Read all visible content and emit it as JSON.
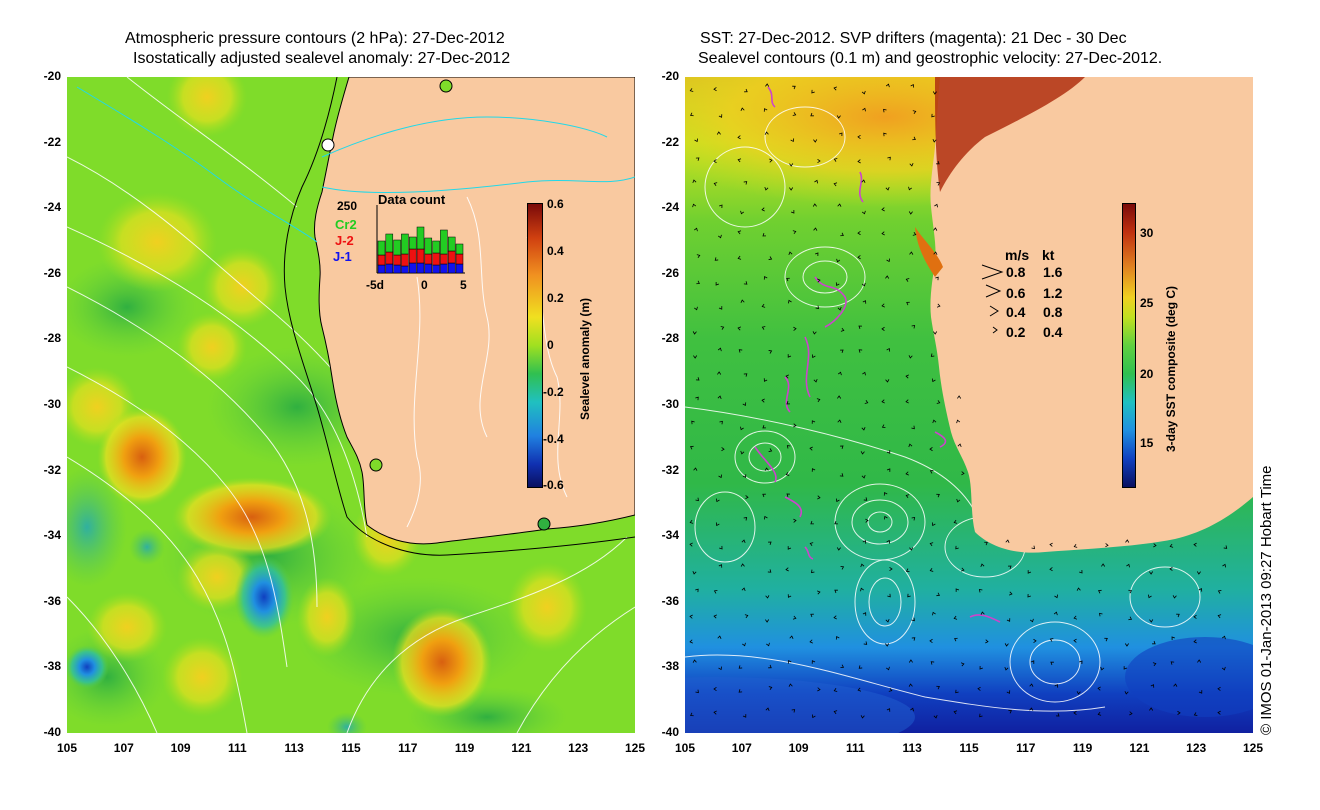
{
  "left_panel": {
    "title_line1": "Atmospheric pressure contours (2 hPa): 27-Dec-2012",
    "title_line2": "Isostatically adjusted sealevel anomaly: 27-Dec-2012",
    "colorbar": {
      "label": "Sealevel anomaly (m)",
      "ticks": [
        "0.6",
        "0.4",
        "0.2",
        "0",
        "-0.2",
        "-0.4",
        "-0.6"
      ],
      "min": -0.6,
      "max": 0.6
    },
    "data_count": {
      "title": "Data count",
      "max_label": "250",
      "series_labels": [
        "Cr2",
        "J-2",
        "J-1"
      ],
      "series_colors": [
        "#22cc22",
        "#ee1111",
        "#1111ee"
      ],
      "x_ticks": [
        "-5d",
        "0",
        "5"
      ]
    }
  },
  "right_panel": {
    "title_line1": "SST: 27-Dec-2012. SVP drifters (magenta): 21 Dec - 30 Dec",
    "title_line2": "Sealevel contours (0.1 m) and geostrophic velocity: 27-Dec-2012.",
    "colorbar": {
      "label": "3-day SST composite (deg C)",
      "ticks": [
        "30",
        "25",
        "20",
        "15"
      ],
      "min": 12,
      "max": 32
    },
    "velocity_legend": {
      "header_ms": "m/s",
      "header_kt": "kt",
      "rows": [
        {
          "ms": "0.8",
          "kt": "1.6"
        },
        {
          "ms": "0.6",
          "kt": "1.2"
        },
        {
          "ms": "0.4",
          "kt": "0.8"
        },
        {
          "ms": "0.2",
          "kt": "0.4"
        }
      ]
    }
  },
  "axes": {
    "y_ticks": [
      "-20",
      "-22",
      "-24",
      "-26",
      "-28",
      "-30",
      "-32",
      "-34",
      "-36",
      "-38",
      "-40"
    ],
    "x_ticks": [
      "105",
      "107",
      "109",
      "111",
      "113",
      "115",
      "117",
      "119",
      "121",
      "123",
      "125"
    ]
  },
  "credit": "© IMOS 01-Jan-2013 09:27 Hobart Time",
  "colors": {
    "land": "#f9c9a0",
    "ocean_green": "#7fdc2a",
    "sst_green": "#30c040",
    "coast_line": "#000000",
    "contour": "#ffffff",
    "river": "#22d8e8"
  }
}
